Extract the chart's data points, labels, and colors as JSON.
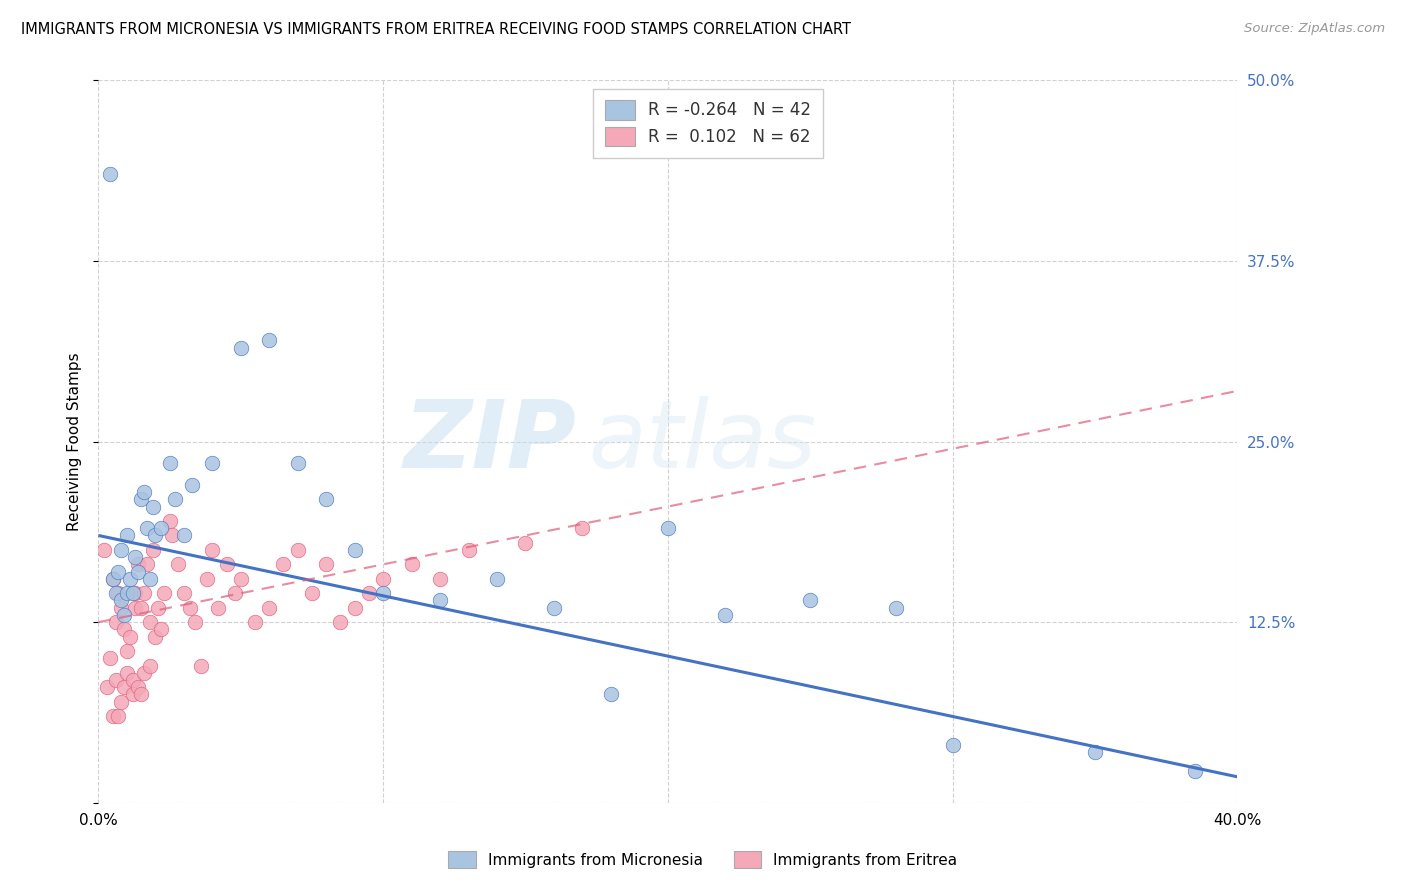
{
  "title": "IMMIGRANTS FROM MICRONESIA VS IMMIGRANTS FROM ERITREA RECEIVING FOOD STAMPS CORRELATION CHART",
  "source": "Source: ZipAtlas.com",
  "ylabel": "Receiving Food Stamps",
  "legend_micronesia": "Immigrants from Micronesia",
  "legend_eritrea": "Immigrants from Eritrea",
  "R_micronesia": -0.264,
  "N_micronesia": 42,
  "R_eritrea": 0.102,
  "N_eritrea": 62,
  "xlim": [
    0.0,
    0.4
  ],
  "ylim": [
    0.0,
    0.5
  ],
  "color_micronesia": "#a8c4e0",
  "color_eritrea": "#f4a8b8",
  "line_color_micronesia": "#4472c4",
  "line_color_eritrea": "#e05a7a",
  "watermark_zip": "ZIP",
  "watermark_atlas": "atlas",
  "micronesia_x": [
    0.004,
    0.005,
    0.006,
    0.007,
    0.008,
    0.008,
    0.009,
    0.01,
    0.01,
    0.011,
    0.012,
    0.013,
    0.014,
    0.015,
    0.016,
    0.017,
    0.018,
    0.019,
    0.02,
    0.022,
    0.025,
    0.027,
    0.03,
    0.033,
    0.04,
    0.05,
    0.06,
    0.07,
    0.08,
    0.09,
    0.1,
    0.12,
    0.14,
    0.16,
    0.18,
    0.2,
    0.22,
    0.25,
    0.28,
    0.3,
    0.35,
    0.385
  ],
  "micronesia_y": [
    0.435,
    0.155,
    0.145,
    0.16,
    0.14,
    0.175,
    0.13,
    0.185,
    0.145,
    0.155,
    0.145,
    0.17,
    0.16,
    0.21,
    0.215,
    0.19,
    0.155,
    0.205,
    0.185,
    0.19,
    0.235,
    0.21,
    0.185,
    0.22,
    0.235,
    0.315,
    0.32,
    0.235,
    0.21,
    0.175,
    0.145,
    0.14,
    0.155,
    0.135,
    0.075,
    0.19,
    0.13,
    0.14,
    0.135,
    0.04,
    0.035,
    0.022
  ],
  "eritrea_x": [
    0.002,
    0.003,
    0.004,
    0.005,
    0.005,
    0.006,
    0.006,
    0.007,
    0.007,
    0.008,
    0.008,
    0.009,
    0.009,
    0.01,
    0.01,
    0.011,
    0.012,
    0.012,
    0.013,
    0.013,
    0.014,
    0.014,
    0.015,
    0.015,
    0.016,
    0.016,
    0.017,
    0.018,
    0.018,
    0.019,
    0.02,
    0.021,
    0.022,
    0.023,
    0.025,
    0.026,
    0.028,
    0.03,
    0.032,
    0.034,
    0.036,
    0.038,
    0.04,
    0.042,
    0.045,
    0.048,
    0.05,
    0.055,
    0.06,
    0.065,
    0.07,
    0.075,
    0.08,
    0.085,
    0.09,
    0.095,
    0.1,
    0.11,
    0.12,
    0.13,
    0.15,
    0.17
  ],
  "eritrea_y": [
    0.175,
    0.08,
    0.1,
    0.155,
    0.06,
    0.085,
    0.125,
    0.145,
    0.06,
    0.07,
    0.135,
    0.08,
    0.12,
    0.105,
    0.09,
    0.115,
    0.085,
    0.075,
    0.135,
    0.145,
    0.165,
    0.08,
    0.075,
    0.135,
    0.145,
    0.09,
    0.165,
    0.125,
    0.095,
    0.175,
    0.115,
    0.135,
    0.12,
    0.145,
    0.195,
    0.185,
    0.165,
    0.145,
    0.135,
    0.125,
    0.095,
    0.155,
    0.175,
    0.135,
    0.165,
    0.145,
    0.155,
    0.125,
    0.135,
    0.165,
    0.175,
    0.145,
    0.165,
    0.125,
    0.135,
    0.145,
    0.155,
    0.165,
    0.155,
    0.175,
    0.18,
    0.19
  ],
  "trend_mic_x0": 0.0,
  "trend_mic_y0": 0.185,
  "trend_mic_x1": 0.4,
  "trend_mic_y1": 0.018,
  "trend_eri_x0": 0.0,
  "trend_eri_y0": 0.125,
  "trend_eri_x1": 0.4,
  "trend_eri_y1": 0.285
}
